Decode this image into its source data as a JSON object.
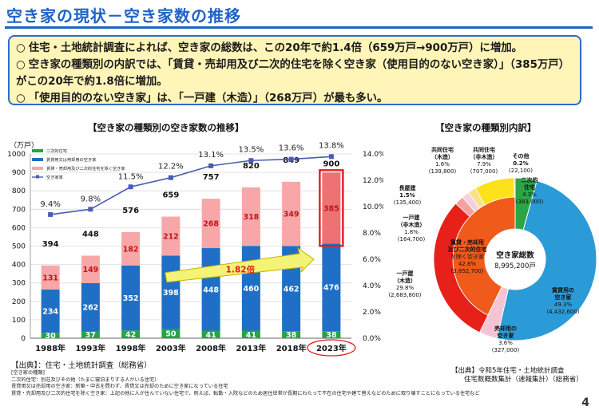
{
  "page": {
    "title": "空き家の現状－空き家数の推移",
    "page_number": "4"
  },
  "summary": {
    "bullet_mark": "○",
    "bullets": [
      "住宅・土地統計調査によれば、空き家の総数は、この20年で約1.4倍（659万戸→900万戸）に増加。",
      "空き家の種類別の内訳では、「賃貸・売却用及び二次的住宅を除く空き家（使用目的のない空き家）」（385万戸）がこの20年で約1.8倍に増加。",
      "「使用目的のない空き家」は、「一戸建（木造）」（268万戸）が最も多い。"
    ]
  },
  "left_title": "【空き家の種類別の空き家数の推移】",
  "right_title": "【空き家の種類別内訳】",
  "chart_data": [
    {
      "type": "bar",
      "stacked": true,
      "categories": [
        "1988年",
        "1993年",
        "1998年",
        "2003年",
        "2008年",
        "2013年",
        "2018年",
        "2023年"
      ],
      "ylabel": "（万戸）",
      "ylim": [
        0,
        1000
      ],
      "yticks": [
        "0",
        "100",
        "200",
        "300",
        "400",
        "500",
        "600",
        "700",
        "800",
        "900",
        "1000"
      ],
      "y2lim": [
        0,
        14
      ],
      "y2ticks": [
        "0.0%",
        "2.0%",
        "4.0%",
        "6.0%",
        "8.0%",
        "10.0%",
        "12.0%",
        "14.0%"
      ],
      "series": [
        {
          "name": "二次的住宅",
          "color": "#22a447",
          "values": [
            30,
            37,
            42,
            50,
            41,
            41,
            38,
            38
          ],
          "labels": [
            "30",
            "37",
            "42",
            "50",
            "41",
            "41",
            "38",
            "38"
          ]
        },
        {
          "name": "賃貸用又は売却用の空き家",
          "color": "#1f6fc6",
          "values": [
            234,
            262,
            352,
            398,
            448,
            460,
            462,
            476
          ],
          "labels": [
            "234",
            "262",
            "352",
            "398",
            "448",
            "460",
            "462",
            "476"
          ]
        },
        {
          "name": "賃貸・売却用及び二次的住宅を除く空き家",
          "color": "#f7a7a7",
          "values": [
            131,
            149,
            182,
            212,
            268,
            318,
            349,
            385
          ],
          "labels": [
            "131",
            "149",
            "182",
            "212",
            "268",
            "318",
            "349",
            "385"
          ]
        }
      ],
      "totals": [
        "394",
        "448",
        "576",
        "659",
        "757",
        "820",
        "849",
        "900"
      ],
      "line_series": {
        "name": "空き家率",
        "color": "#4a5bb5",
        "values": [
          9.4,
          9.8,
          11.5,
          12.2,
          13.1,
          13.5,
          13.6,
          13.8
        ],
        "labels": [
          "9.4%",
          "9.8%",
          "11.5%",
          "12.2%",
          "13.1%",
          "13.5%",
          "13.6%",
          "13.8%"
        ]
      },
      "annotation": "1.82倍",
      "highlight_category": "2023年"
    },
    {
      "type": "pie",
      "center_title": "空き家総数",
      "center_value": "8,995,200戸",
      "slices": [
        {
          "name": "二次的住宅",
          "percent": "4.3%",
          "count": "(383,000)",
          "value": 4.3,
          "color": "#2aa648"
        },
        {
          "name": "賃貸用の空き家",
          "percent": "49.3%",
          "count": "(4,432,600)",
          "value": 49.3,
          "color": "#2b9bd7"
        },
        {
          "name": "売却用の空き家",
          "percent": "3.6%",
          "count": "(327,000)",
          "value": 3.6,
          "color": "#f4c4d4"
        },
        {
          "name": "賃貸・売却用及び二次的住宅を除く空き家",
          "percent": "42.8%",
          "count": "(3,852,700)",
          "value": 42.8,
          "color": "#f05a1a"
        }
      ],
      "outer_ring": [
        {
          "name": "一戸建（木造）",
          "percent": "29.8%",
          "count": "(2,683,800)",
          "value": 29.8,
          "color": "#e8201a"
        },
        {
          "name": "一戸建（非木造）",
          "percent": "1.8%",
          "count": "(164,700)",
          "value": 1.8,
          "color": "#f6a0a0"
        },
        {
          "name": "長屋建",
          "percent": "1.5%",
          "count": "(135,400)",
          "value": 1.5,
          "color": "#f7cfe0"
        },
        {
          "name": "共同住宅（木造）",
          "percent": "1.6%",
          "count": "(139,800)",
          "value": 1.6,
          "color": "#f9e08c"
        },
        {
          "name": "共同住宅（非木造）",
          "percent": "7.9%",
          "count": "(707,000)",
          "value": 7.9,
          "color": "#fde21b"
        },
        {
          "name": "その他",
          "percent": "0.2%",
          "count": "(22,100)",
          "value": 0.2,
          "color": "#c8c8c8"
        }
      ]
    }
  ],
  "left_source": "【出典】：住宅・土地統計調査（総務省）",
  "right_source_lines": [
    "【出典】令和5年住宅・土地統計調査",
    "住宅数概数集計（速報集計）（総務省）"
  ],
  "notes": [
    "[空き家の種類]",
    "二次的住宅：別荘及びその他（たまに寝泊まりする人がいる住宅）",
    "賃貸用又は売却用の空き家：新築・中古を問わず、賃貸又は売却のために空き家になっている住宅",
    "賃貸・売却用及び二次的住宅を除く空き家：上記の他に人が住んでいない住宅で、例えば、転勤・入院などのため居住世帯が長期にわたって不在の住宅や建て替えなどのために取り壊すことになっている住宅など"
  ]
}
